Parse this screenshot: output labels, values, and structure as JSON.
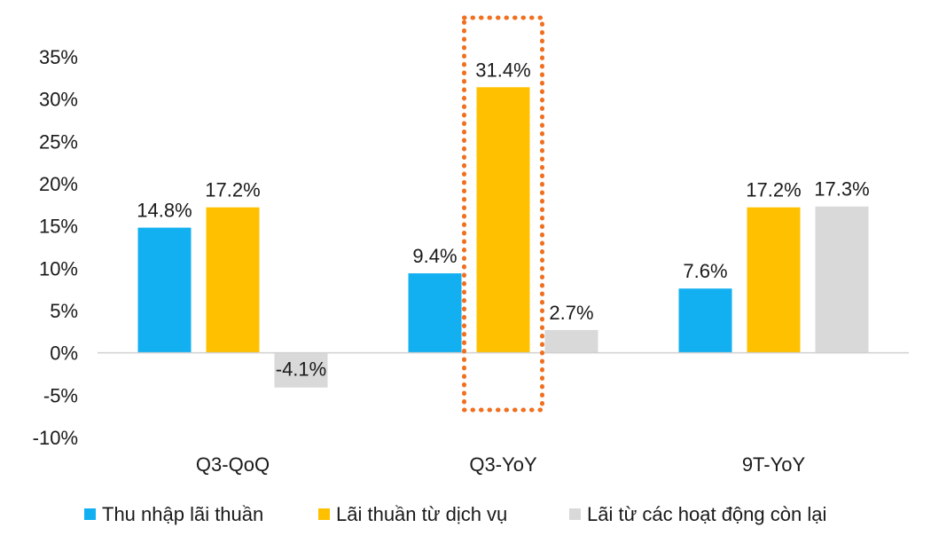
{
  "chart_data": {
    "type": "bar",
    "categories": [
      "Q3-QoQ",
      "Q3-YoY",
      "9T-YoY"
    ],
    "series": [
      {
        "name": "Thu nhập lãi thuần",
        "values": [
          14.8,
          9.4,
          7.6
        ],
        "color": "#12B0F0",
        "labels": [
          "14.8%",
          "9.4%",
          "7.6%"
        ]
      },
      {
        "name": "Lãi thuần từ dịch vụ",
        "values": [
          17.2,
          31.4,
          17.2
        ],
        "color": "#FFC000",
        "labels": [
          "17.2%",
          "31.4%",
          "17.2%"
        ]
      },
      {
        "name": "Lãi từ các hoạt động còn lại",
        "values": [
          -4.1,
          2.7,
          17.3
        ],
        "color": "#D9D9D9",
        "labels": [
          "-4.1%",
          "2.7%",
          "17.3%"
        ]
      }
    ],
    "yticks": [
      "35%",
      "30%",
      "25%",
      "20%",
      "15%",
      "10%",
      "5%",
      "0%",
      "-5%",
      "-10%"
    ],
    "ytick_values": [
      35,
      30,
      25,
      20,
      15,
      10,
      5,
      0,
      -5,
      -10
    ],
    "ylim": [
      -10,
      35
    ],
    "grid": false,
    "legend_position": "bottom",
    "highlight": {
      "category": "Q3-YoY",
      "series": "Lãi thuần từ dịch vụ",
      "color": "#F07020",
      "style": "dotted"
    }
  }
}
